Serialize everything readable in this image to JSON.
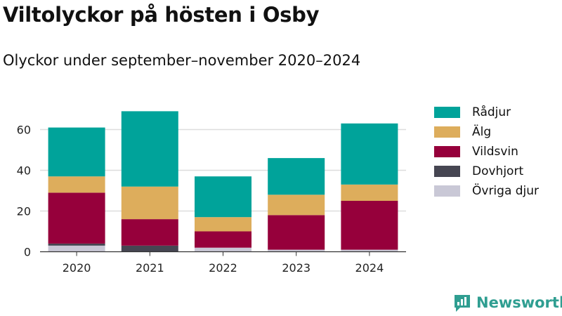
{
  "header": {
    "title": "Viltolyckor på hösten i Osby",
    "subtitle": "Olyckor under september–november 2020–2024"
  },
  "brand": {
    "name": "Newsworthy",
    "icon": "newsworthy-logo-icon",
    "color": "#2f9e91"
  },
  "chart_data": {
    "type": "bar",
    "stacked": true,
    "categories": [
      "2020",
      "2021",
      "2022",
      "2023",
      "2024"
    ],
    "series": [
      {
        "name": "Övriga djur",
        "color": "#c9c8d6",
        "values": [
          3,
          0,
          2,
          1,
          1
        ]
      },
      {
        "name": "Dovhjort",
        "color": "#464652",
        "values": [
          1,
          3,
          0,
          0,
          0
        ]
      },
      {
        "name": "Vildsvin",
        "color": "#96003b",
        "values": [
          25,
          13,
          8,
          17,
          24
        ]
      },
      {
        "name": "Älg",
        "color": "#ddad5c",
        "values": [
          8,
          16,
          7,
          10,
          8
        ]
      },
      {
        "name": "Rådjur",
        "color": "#00a39a",
        "values": [
          24,
          37,
          20,
          18,
          30
        ]
      }
    ],
    "legend_order": [
      "Rådjur",
      "Älg",
      "Vildsvin",
      "Dovhjort",
      "Övriga djur"
    ],
    "yticks": [
      0,
      20,
      40,
      60
    ],
    "ylim": [
      0,
      72
    ],
    "grid": true,
    "legend_position": "right",
    "xlabel": "",
    "ylabel": ""
  }
}
